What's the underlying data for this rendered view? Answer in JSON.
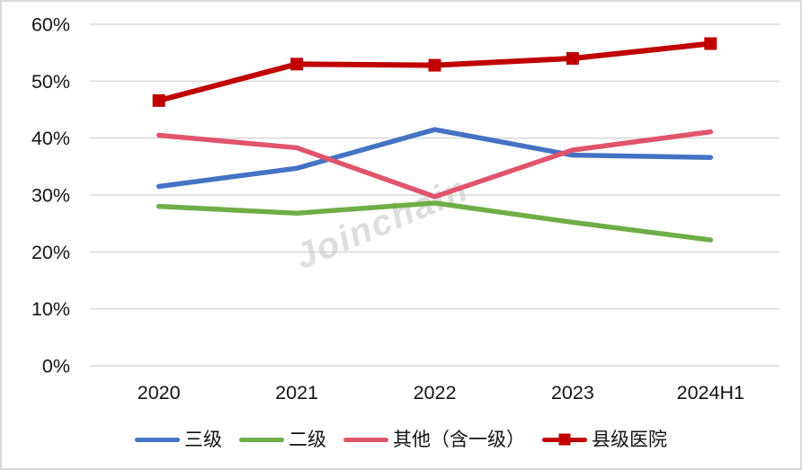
{
  "colors": {
    "grid": "#d9d9d9",
    "frame_border": "#d9d9d9",
    "axis_text": "#141414",
    "watermark": "#c9c9c9",
    "series_blue": "#4472C4",
    "series_green": "#70AD47",
    "series_pink": "#E0546C",
    "series_darkred": "#C00000"
  },
  "watermark_text": "Joinchain",
  "chart_data": {
    "type": "line",
    "title": "",
    "xlabel": "",
    "ylabel": "",
    "categories": [
      "2020",
      "2021",
      "2022",
      "2023",
      "2024H1"
    ],
    "series": [
      {
        "name": "三级",
        "color": "#4472C4",
        "marker": "none",
        "values": [
          31.5,
          34.7,
          41.5,
          37.0,
          36.6
        ]
      },
      {
        "name": "二级",
        "color": "#70AD47",
        "marker": "none",
        "values": [
          28.0,
          26.8,
          28.6,
          25.2,
          22.1
        ]
      },
      {
        "name": "其他（含一级）",
        "color": "#E0546C",
        "marker": "none",
        "values": [
          40.5,
          38.3,
          29.7,
          37.9,
          41.1
        ]
      },
      {
        "name": "县级医院",
        "color": "#C00000",
        "marker": "square",
        "values": [
          46.6,
          53.0,
          52.8,
          54.0,
          56.6
        ]
      }
    ],
    "ylim": [
      0,
      60
    ],
    "ytick_step": 10,
    "ytick_labels": [
      "0%",
      "10%",
      "20%",
      "30%",
      "40%",
      "50%",
      "60%"
    ],
    "grid": true,
    "legend_position": "bottom",
    "watermark": "Joinchain"
  }
}
